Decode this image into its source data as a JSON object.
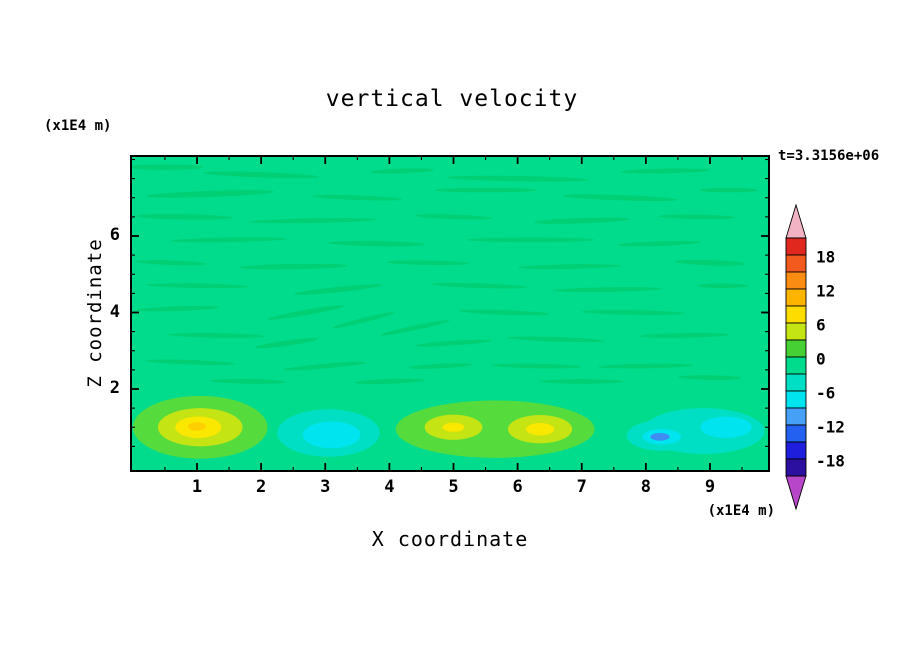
{
  "title": "vertical velocity",
  "timestamp": "t=3.3156e+06",
  "axes": {
    "x": {
      "label": "X coordinate",
      "unit": "(x1E4 m)",
      "ticks": [
        1,
        2,
        3,
        4,
        5,
        6,
        7,
        8,
        9
      ],
      "minor_step": 0.5,
      "range": [
        0,
        9.94
      ]
    },
    "z": {
      "label": "Z coordinate",
      "unit": "(x1E4 m)",
      "ticks": [
        6,
        4,
        2
      ],
      "minor_step": 0.5,
      "range": [
        0,
        8.1
      ]
    }
  },
  "colorbar": {
    "labels": [
      "18",
      "12",
      "6",
      "0",
      "-6",
      "-12",
      "-18"
    ],
    "level_min": -21,
    "level_max": 21,
    "level_step": 3,
    "segment_colors": [
      "#E0281E",
      "#F25A1E",
      "#FA8C14",
      "#FFB400",
      "#FFDC00",
      "#C4E414",
      "#46D033",
      "#00DC8C",
      "#00DFC3",
      "#00E4EF",
      "#46A0F5",
      "#2361F0",
      "#1E1EDC",
      "#2B0F9E"
    ],
    "arrow_top_color": "#F2B4C4",
    "arrow_bottom_color": "#B846C8"
  },
  "chart_data": {
    "type": "heatmap",
    "title": "vertical velocity",
    "xlabel": "X coordinate (x1E4 m)",
    "ylabel": "Z coordinate (x1E4 m)",
    "xlim": [
      0,
      9.94
    ],
    "ylim": [
      0,
      8.1
    ],
    "colorbar_range": [
      -21,
      21
    ],
    "contour_interval": 3,
    "levels_labeled": [
      18,
      12,
      6,
      0,
      -6,
      -12,
      -18
    ],
    "background_value": 0,
    "background_color": "#00DC8C",
    "streak_color": "#00CF74",
    "features": [
      {
        "x": 1.05,
        "z": 1.0,
        "rx": 1.05,
        "rz": 0.82,
        "color": "#55DC3C",
        "value": 3
      },
      {
        "x": 1.05,
        "z": 1.0,
        "rx": 0.66,
        "rz": 0.5,
        "color": "#C4E414",
        "value": 6
      },
      {
        "x": 1.02,
        "z": 1.0,
        "rx": 0.36,
        "rz": 0.28,
        "color": "#FBE800",
        "value": 9
      },
      {
        "x": 1.0,
        "z": 1.02,
        "rx": 0.14,
        "rz": 0.11,
        "color": "#FFD000",
        "value": 10
      },
      {
        "x": 3.05,
        "z": 0.85,
        "rx": 0.8,
        "rz": 0.62,
        "color": "#00DFC3",
        "value": -4
      },
      {
        "x": 3.1,
        "z": 0.8,
        "rx": 0.45,
        "rz": 0.35,
        "color": "#00E4EF",
        "value": -7
      },
      {
        "x": 5.65,
        "z": 0.95,
        "rx": 1.55,
        "rz": 0.75,
        "color": "#55DC3C",
        "value": 3
      },
      {
        "x": 5.0,
        "z": 1.0,
        "rx": 0.45,
        "rz": 0.33,
        "color": "#C4E414",
        "value": 6
      },
      {
        "x": 5.0,
        "z": 1.0,
        "rx": 0.17,
        "rz": 0.12,
        "color": "#FBE800",
        "value": 8
      },
      {
        "x": 6.35,
        "z": 0.95,
        "rx": 0.5,
        "rz": 0.37,
        "color": "#C4E414",
        "value": 6
      },
      {
        "x": 6.35,
        "z": 0.95,
        "rx": 0.22,
        "rz": 0.16,
        "color": "#FBE800",
        "value": 8
      },
      {
        "x": 8.9,
        "z": 0.9,
        "rx": 0.95,
        "rz": 0.6,
        "color": "#00DFC3",
        "value": -4
      },
      {
        "x": 9.25,
        "z": 1.0,
        "rx": 0.4,
        "rz": 0.28,
        "color": "#00E4EF",
        "value": -6
      },
      {
        "x": 8.25,
        "z": 0.78,
        "rx": 0.55,
        "rz": 0.4,
        "color": "#00DFC3",
        "value": -4
      },
      {
        "x": 8.25,
        "z": 0.75,
        "rx": 0.3,
        "rz": 0.2,
        "color": "#00E4EF",
        "value": -7
      },
      {
        "x": 8.22,
        "z": 0.75,
        "rx": 0.15,
        "rz": 0.1,
        "color": "#3E8BF2",
        "value": -10
      }
    ],
    "texture_streaks": [
      [
        0.5,
        7.8,
        1.2,
        0.14,
        0
      ],
      [
        2.0,
        7.6,
        1.8,
        0.14,
        2
      ],
      [
        4.2,
        7.7,
        1.0,
        0.12,
        -2
      ],
      [
        6.0,
        7.5,
        2.2,
        0.14,
        1
      ],
      [
        8.3,
        7.7,
        1.4,
        0.12,
        -1
      ],
      [
        1.2,
        7.1,
        2.0,
        0.16,
        -2
      ],
      [
        3.5,
        7.0,
        1.4,
        0.12,
        2
      ],
      [
        5.5,
        7.2,
        1.6,
        0.12,
        0
      ],
      [
        7.6,
        7.0,
        1.8,
        0.14,
        2
      ],
      [
        9.3,
        7.2,
        0.9,
        0.12,
        0
      ],
      [
        0.8,
        6.5,
        1.5,
        0.14,
        1
      ],
      [
        2.8,
        6.4,
        2.0,
        0.12,
        -1
      ],
      [
        5.0,
        6.5,
        1.2,
        0.12,
        2
      ],
      [
        7.0,
        6.4,
        1.5,
        0.14,
        -2
      ],
      [
        8.8,
        6.5,
        1.2,
        0.12,
        1
      ],
      [
        1.5,
        5.9,
        1.8,
        0.12,
        -1
      ],
      [
        3.8,
        5.8,
        1.5,
        0.14,
        1
      ],
      [
        6.2,
        5.9,
        2.0,
        0.12,
        0
      ],
      [
        8.2,
        5.8,
        1.3,
        0.12,
        -2
      ],
      [
        0.6,
        5.3,
        1.1,
        0.12,
        2
      ],
      [
        2.5,
        5.2,
        1.7,
        0.14,
        -1
      ],
      [
        4.6,
        5.3,
        1.3,
        0.12,
        1
      ],
      [
        6.8,
        5.2,
        1.6,
        0.12,
        -1
      ],
      [
        9.0,
        5.3,
        1.1,
        0.14,
        2
      ],
      [
        1.0,
        4.7,
        1.6,
        0.12,
        1
      ],
      [
        3.2,
        4.6,
        1.4,
        0.14,
        -6
      ],
      [
        5.4,
        4.7,
        1.5,
        0.12,
        2
      ],
      [
        7.4,
        4.6,
        1.7,
        0.12,
        -1
      ],
      [
        9.2,
        4.7,
        0.8,
        0.12,
        0
      ],
      [
        0.7,
        4.1,
        1.3,
        0.12,
        -2
      ],
      [
        2.7,
        4.0,
        1.2,
        0.14,
        -10
      ],
      [
        3.6,
        3.8,
        1.0,
        0.12,
        -14
      ],
      [
        4.4,
        3.6,
        1.1,
        0.12,
        -12
      ],
      [
        5.8,
        4.0,
        1.4,
        0.12,
        2
      ],
      [
        7.8,
        4.0,
        1.6,
        0.12,
        1
      ],
      [
        1.3,
        3.4,
        1.5,
        0.12,
        1
      ],
      [
        2.4,
        3.2,
        1.0,
        0.14,
        -8
      ],
      [
        5.0,
        3.2,
        1.2,
        0.12,
        -4
      ],
      [
        6.6,
        3.3,
        1.5,
        0.12,
        2
      ],
      [
        8.6,
        3.4,
        1.4,
        0.12,
        -1
      ],
      [
        0.9,
        2.7,
        1.4,
        0.12,
        2
      ],
      [
        3.0,
        2.6,
        1.3,
        0.12,
        -5
      ],
      [
        4.8,
        2.6,
        1.0,
        0.12,
        -3
      ],
      [
        6.3,
        2.6,
        1.4,
        0.12,
        1
      ],
      [
        8.0,
        2.6,
        1.5,
        0.12,
        -1
      ],
      [
        1.8,
        2.2,
        1.2,
        0.12,
        1
      ],
      [
        4.0,
        2.2,
        1.1,
        0.12,
        -2
      ],
      [
        7.0,
        2.2,
        1.3,
        0.12,
        0
      ],
      [
        9.0,
        2.3,
        1.0,
        0.12,
        1
      ]
    ]
  }
}
